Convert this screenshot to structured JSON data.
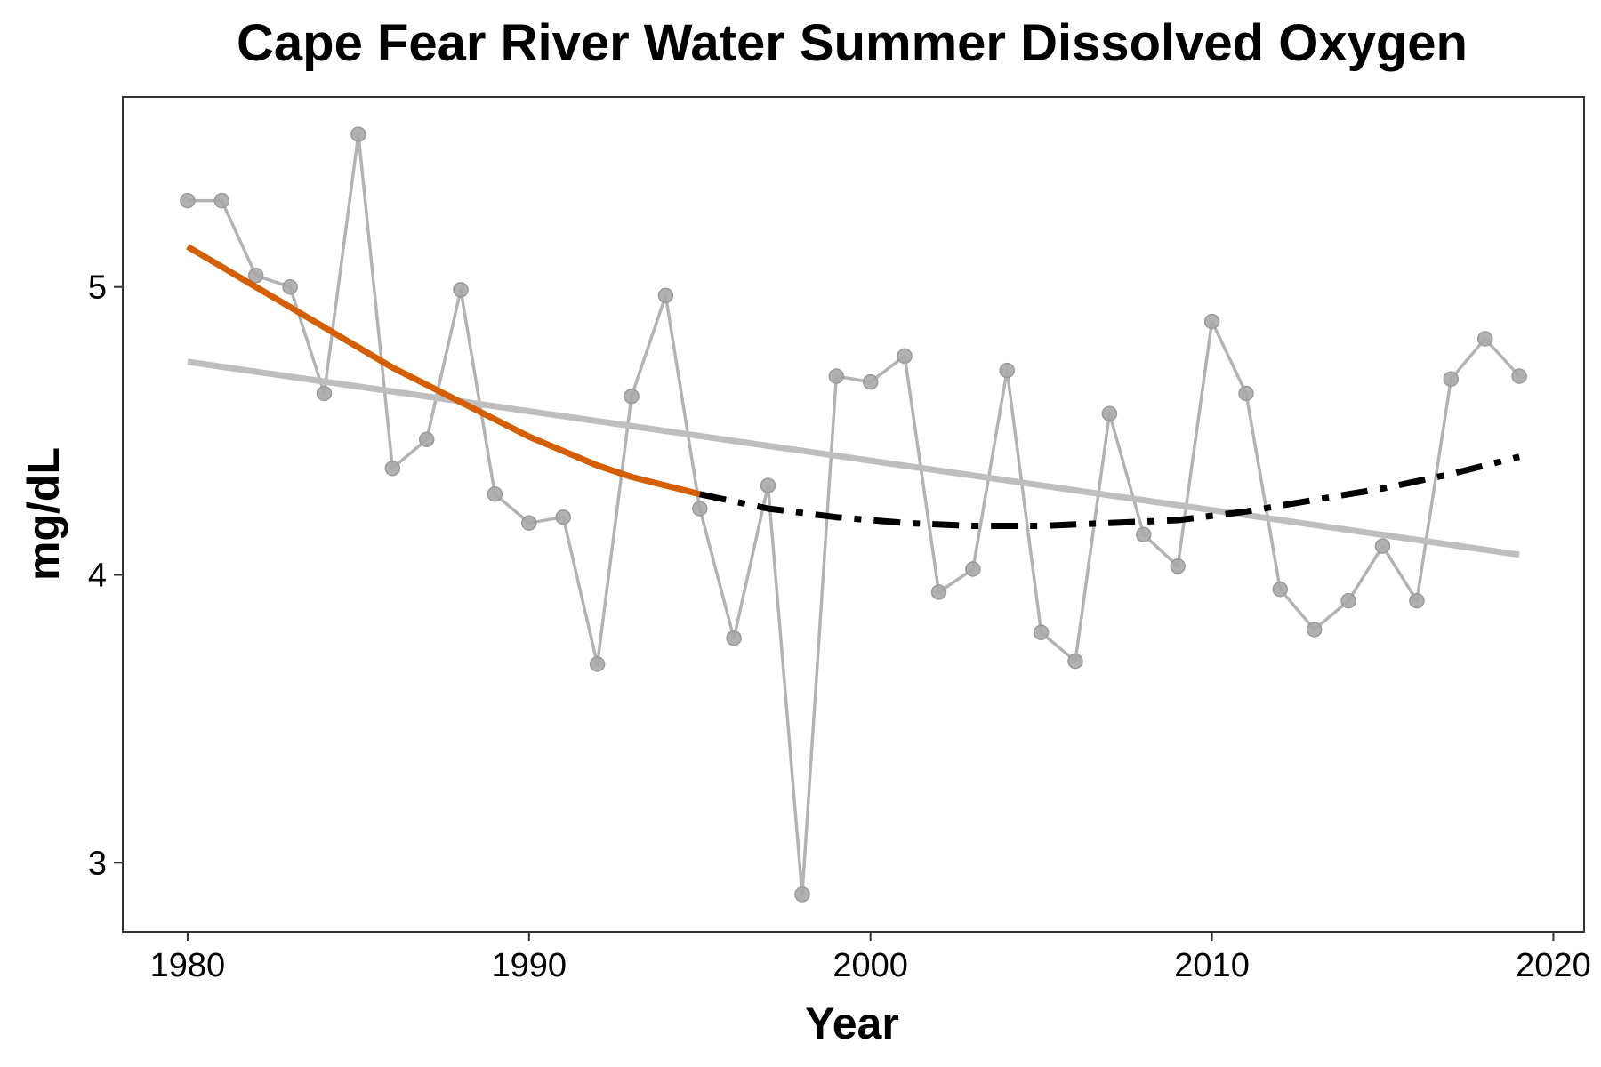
{
  "chart_data": {
    "type": "line",
    "title": "Cape Fear River Water Summer Dissolved Oxygen",
    "xlabel": "Year",
    "ylabel": "mg/dL",
    "xlim": [
      1978.1,
      2020.9
    ],
    "ylim": [
      2.76,
      5.66
    ],
    "xticks": [
      1980,
      1990,
      2000,
      2010,
      2020
    ],
    "yticks": [
      3,
      4,
      5
    ],
    "grid": false,
    "legend": "none",
    "series": [
      {
        "kind": "observed",
        "color": "#b3b3b3",
        "x": [
          1980,
          1981,
          1982,
          1983,
          1984,
          1985,
          1986,
          1987,
          1988,
          1989,
          1990,
          1991,
          1992,
          1993,
          1994,
          1995,
          1996,
          1997,
          1998,
          1999,
          2000,
          2001,
          2002,
          2003,
          2004,
          2005,
          2006,
          2007,
          2008,
          2009,
          2010,
          2011,
          2012,
          2013,
          2014,
          2015,
          2016,
          2017,
          2018,
          2019
        ],
        "y": [
          5.3,
          5.3,
          5.04,
          5.0,
          4.63,
          5.53,
          4.37,
          4.47,
          4.99,
          4.28,
          4.18,
          4.2,
          3.69,
          4.62,
          4.97,
          4.23,
          3.78,
          4.31,
          2.89,
          4.69,
          4.67,
          4.76,
          3.94,
          4.02,
          4.71,
          3.8,
          3.7,
          4.56,
          4.14,
          4.03,
          4.88,
          4.63,
          3.95,
          3.81,
          3.91,
          4.1,
          3.91,
          4.68,
          4.82,
          4.69
        ]
      },
      {
        "kind": "linear-trend",
        "color": "#bebebe",
        "x": [
          1980,
          2019
        ],
        "y": [
          4.74,
          4.07
        ]
      },
      {
        "kind": "smooth-early",
        "color": "#d55e00",
        "x": [
          1980,
          1981,
          1982,
          1983,
          1984,
          1985,
          1986,
          1987,
          1988,
          1989,
          1990,
          1991,
          1992,
          1993,
          1994,
          1995
        ],
        "y": [
          5.14,
          5.07,
          5.0,
          4.93,
          4.86,
          4.79,
          4.72,
          4.66,
          4.6,
          4.54,
          4.48,
          4.43,
          4.38,
          4.34,
          4.31,
          4.28
        ]
      },
      {
        "kind": "smooth-late",
        "color": "#000000",
        "x": [
          1995,
          1997,
          1999,
          2001,
          2003,
          2005,
          2007,
          2009,
          2011,
          2013,
          2015,
          2017,
          2019
        ],
        "y": [
          4.28,
          4.23,
          4.2,
          4.18,
          4.17,
          4.17,
          4.18,
          4.19,
          4.22,
          4.26,
          4.3,
          4.35,
          4.41
        ]
      }
    ]
  }
}
